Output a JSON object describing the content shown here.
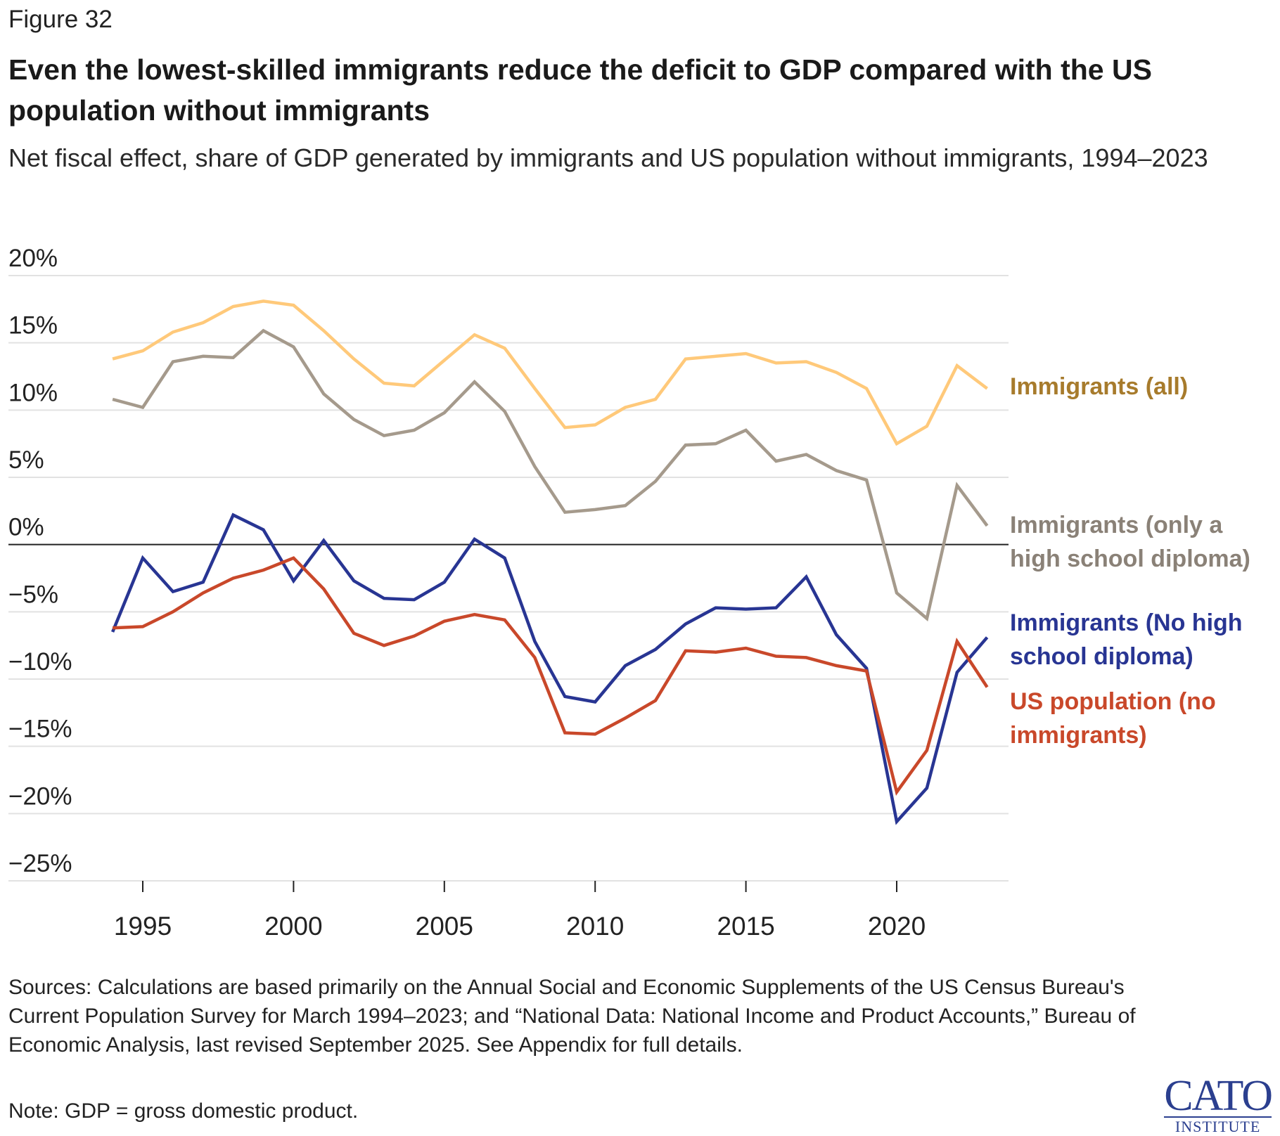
{
  "figure_label": "Figure 32",
  "chart_data": {
    "type": "line",
    "title": "Even the lowest-skilled immigrants reduce the deficit to GDP compared with the US population without immigrants",
    "subtitle": "Net fiscal effect, share of GDP generated by immigrants and US population without immigrants, 1994–2023",
    "xlabel": "",
    "ylabel": "",
    "x": [
      1994,
      1995,
      1996,
      1997,
      1998,
      1999,
      2000,
      2001,
      2002,
      2003,
      2004,
      2005,
      2006,
      2007,
      2008,
      2009,
      2010,
      2011,
      2012,
      2013,
      2014,
      2015,
      2016,
      2017,
      2018,
      2019,
      2020,
      2021,
      2022,
      2023
    ],
    "xlim": [
      1994,
      2023
    ],
    "ylim": [
      -25,
      20
    ],
    "x_ticks": [
      "1995",
      "2000",
      "2005",
      "2010",
      "2015",
      "2020"
    ],
    "y_ticks": [
      "20%",
      "15%",
      "10%",
      "5%",
      "0%",
      "−5%",
      "−10%",
      "−15%",
      "−20%",
      "−25%"
    ],
    "grid": true,
    "legend": "direct labels at right",
    "series": [
      {
        "name": "Immigrants (all)",
        "color": "#FFC97A",
        "label_color": "#A77B2C",
        "values": [
          13.8,
          14.4,
          15.8,
          16.5,
          17.7,
          18.1,
          17.8,
          15.9,
          13.8,
          12.0,
          11.8,
          13.7,
          15.6,
          14.6,
          11.6,
          8.7,
          8.9,
          10.2,
          10.8,
          13.8,
          14.0,
          14.2,
          13.5,
          13.6,
          12.8,
          11.6,
          7.5,
          8.8,
          13.3,
          11.6
        ]
      },
      {
        "name": "Immigrants (only a high school diploma)",
        "color": "#A59A8C",
        "label_color": "#8A8177",
        "values": [
          10.8,
          10.2,
          13.6,
          14.0,
          13.9,
          15.9,
          14.7,
          11.2,
          9.3,
          8.1,
          8.5,
          9.8,
          12.1,
          9.9,
          5.8,
          2.4,
          2.6,
          2.9,
          4.7,
          7.4,
          7.5,
          8.5,
          6.2,
          6.7,
          5.5,
          4.8,
          -3.6,
          -5.5,
          4.4,
          1.4
        ]
      },
      {
        "name": "Immigrants (No high school diploma)",
        "color": "#283593",
        "label_color": "#283593",
        "values": [
          -6.5,
          -1.0,
          -3.5,
          -2.8,
          2.2,
          1.1,
          -2.7,
          0.3,
          -2.7,
          -4.0,
          -4.1,
          -2.8,
          0.4,
          -1.0,
          -7.2,
          -11.3,
          -11.7,
          -9.0,
          -7.8,
          -5.9,
          -4.7,
          -4.8,
          -4.7,
          -2.4,
          -6.7,
          -9.2,
          -20.6,
          -18.1,
          -9.5,
          -6.9
        ]
      },
      {
        "name": "US population (no immigrants)",
        "color": "#C9482A",
        "label_color": "#C9482A",
        "values": [
          -6.2,
          -6.1,
          -5.0,
          -3.6,
          -2.5,
          -1.9,
          -1.0,
          -3.3,
          -6.6,
          -7.5,
          -6.8,
          -5.7,
          -5.2,
          -5.6,
          -8.4,
          -14.0,
          -14.1,
          -12.9,
          -11.6,
          -7.9,
          -8.0,
          -7.7,
          -8.3,
          -8.4,
          -9.0,
          -9.4,
          -18.4,
          -15.3,
          -7.2,
          -10.6
        ]
      }
    ]
  },
  "labels": {
    "series0": [
      "Immigrants (all)"
    ],
    "series1": [
      "Immigrants (only a",
      "high school diploma)"
    ],
    "series2": [
      "Immigrants (No high",
      "school diploma)"
    ],
    "series3": [
      "US population (no",
      "immigrants)"
    ]
  },
  "sources": "Sources: Calculations are based primarily on the Annual Social and Economic Supplements of the US Census Bureau's Current Population Survey for March 1994–2023; and “National Data: National Income and Product Accounts,” Bureau of Economic Analysis, last revised September 2025. See Appendix for full details.",
  "note": "Note: GDP = gross domestic product.",
  "logo": {
    "line1": "CATO",
    "line2": "INSTITUTE"
  }
}
